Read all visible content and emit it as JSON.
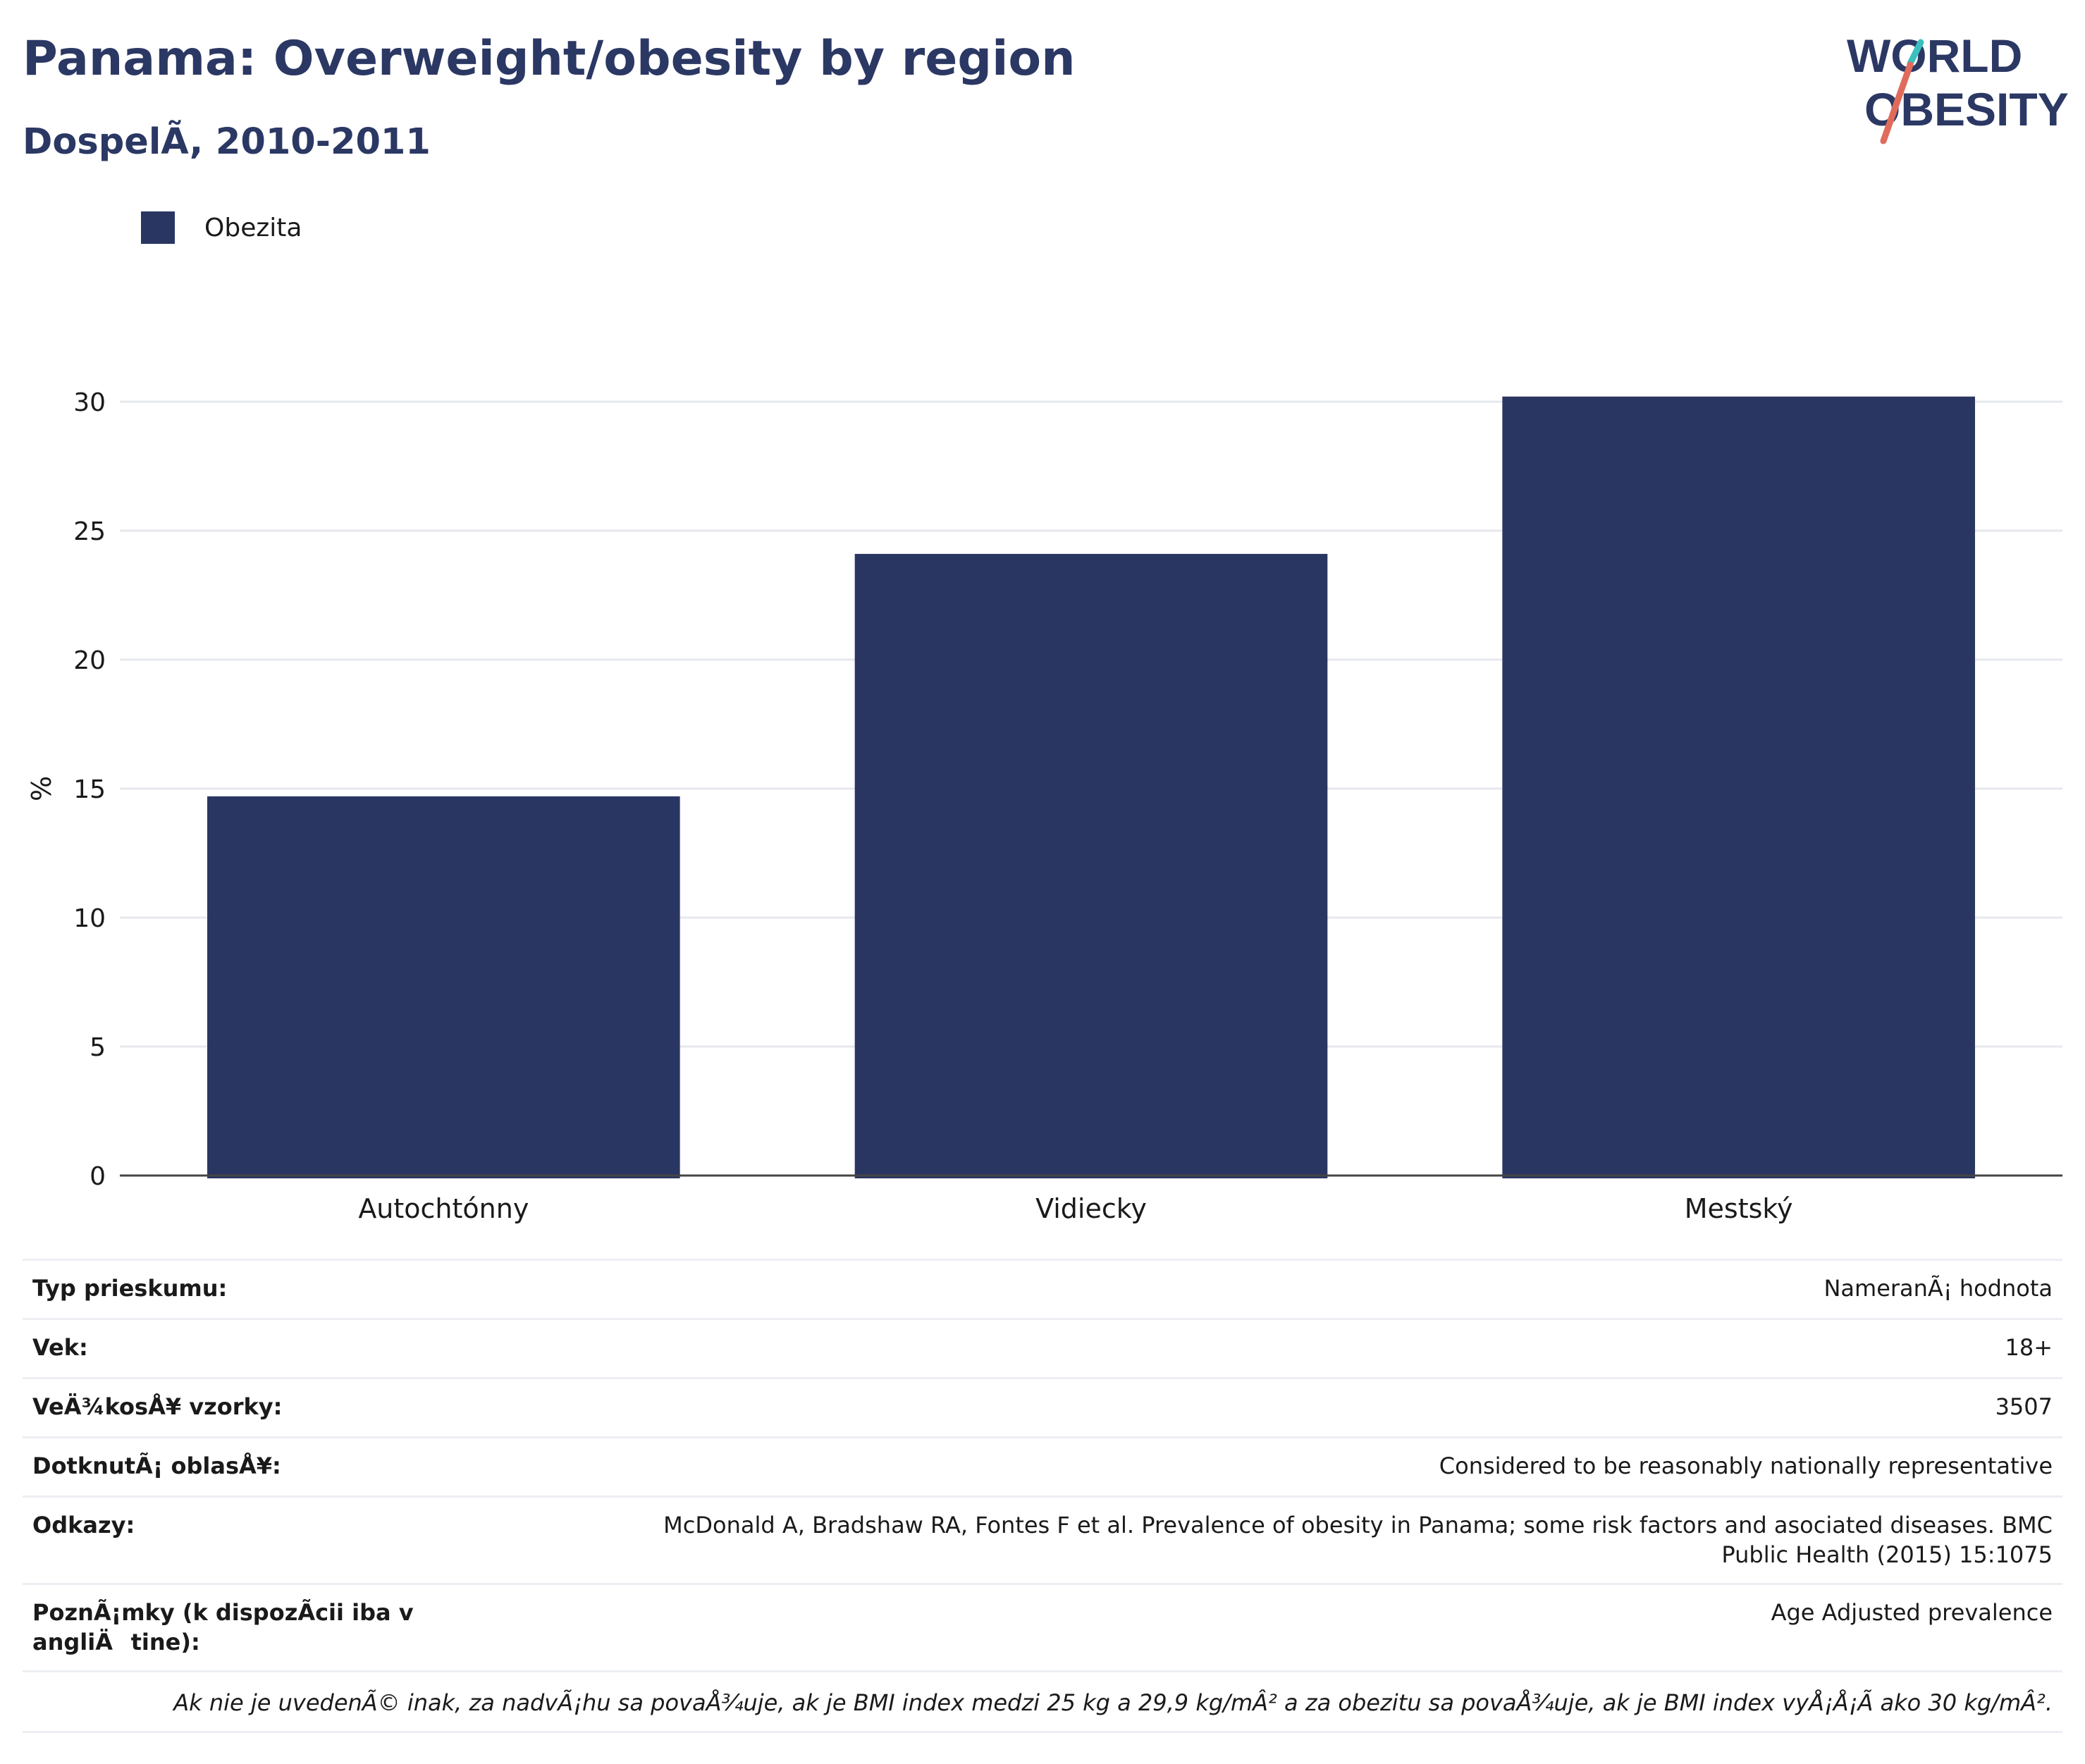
{
  "header": {
    "title": "Panama: Overweight/obesity by region",
    "subtitle": "DospelÃ, 2010-2011"
  },
  "logo": {
    "line1": "WORLD",
    "line2": "OBESITY",
    "text_color": "#2b3864",
    "slash_colors": [
      "#e06b5b",
      "#3bbfbf"
    ]
  },
  "legend": {
    "label": "Obezita",
    "color": "#2a3662"
  },
  "chart_data": {
    "type": "bar",
    "categories": [
      "Autochtónny",
      "Vidiecky",
      "Mestský"
    ],
    "series": [
      {
        "name": "Obezita",
        "values": [
          14.7,
          24.1,
          30.2
        ],
        "color": "#2a3662"
      }
    ],
    "title": "Panama: Overweight/obesity by region",
    "subtitle": "DospelÃ, 2010-2011",
    "xlabel": "",
    "ylabel": "%",
    "ylim": [
      0,
      30
    ],
    "yticks": [
      0,
      5,
      10,
      15,
      20,
      25,
      30
    ],
    "grid": true,
    "legend_position": "top-left"
  },
  "meta": [
    {
      "key": "Typ prieskumu:",
      "value": "NameranÃ¡ hodnota"
    },
    {
      "key": "Vek:",
      "value": "18+"
    },
    {
      "key": "VeÄ¾kosÅ¥ vzorky:",
      "value": "3507"
    },
    {
      "key": "DotknutÃ¡ oblasÅ¥:",
      "value": "Considered to be reasonably nationally representative"
    },
    {
      "key": "Odkazy:",
      "value": "McDonald A, Bradshaw RA, Fontes F et al. Prevalence of obesity in Panama; some risk factors and asociated diseases. BMC Public Health (2015) 15:1075"
    },
    {
      "key": "PoznÃ¡mky (k dispozÃcii iba v angliÄtine):",
      "value": "Age Adjusted prevalence"
    }
  ],
  "footnote": "Ak nie je uvedenÃ© inak, za nadvÃ¡hu sa povaÅ¾uje, ak je BMI index medzi 25 kg a 29,9 kg/mÂ² a za obezitu sa povaÅ¾uje, ak je BMI index vyÅ¡Å¡Ã ako 30 kg/mÂ²."
}
